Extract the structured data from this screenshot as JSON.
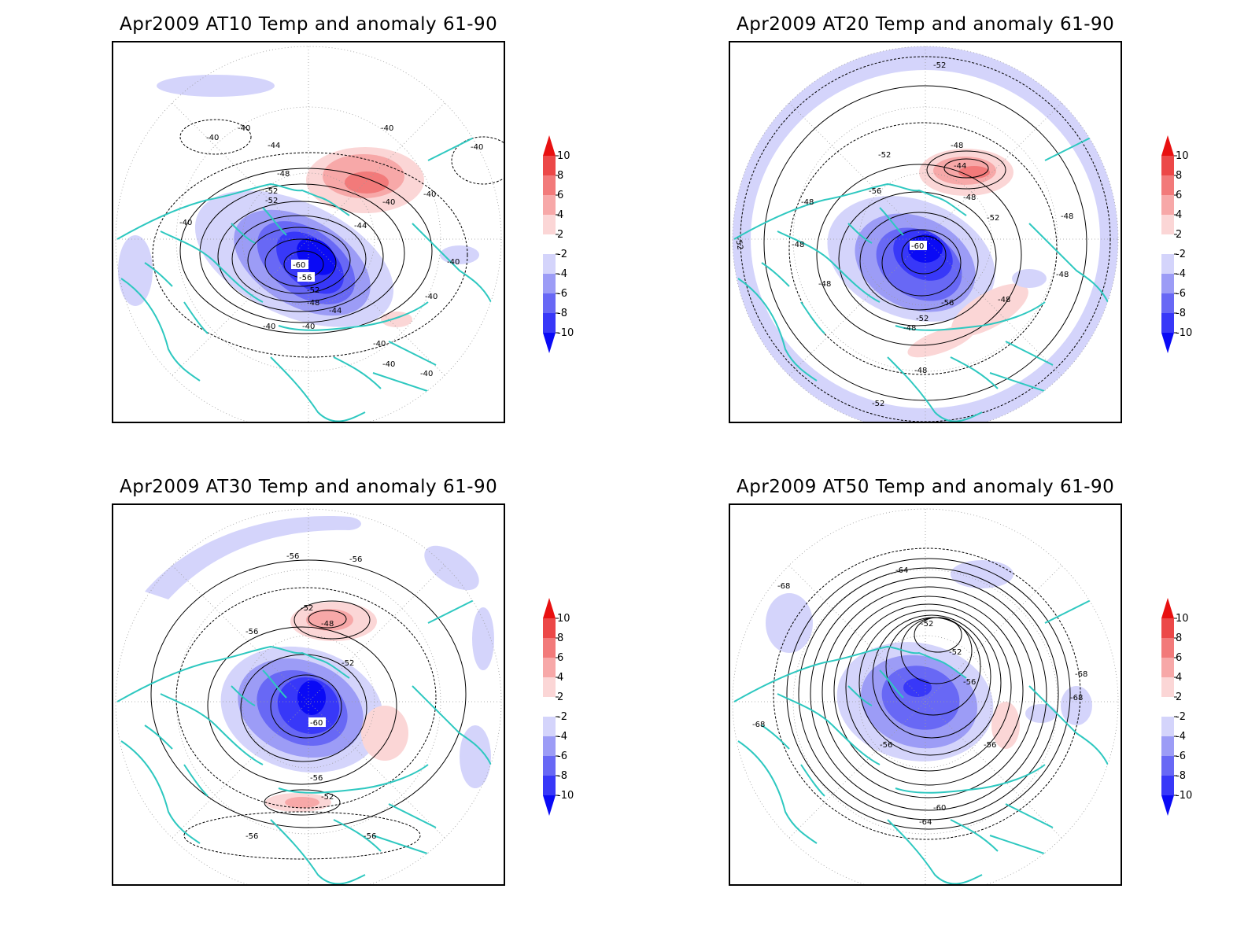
{
  "colors": {
    "land_outline": "#2ec8c0",
    "contour": "#000000",
    "grid": "#9a9a9a",
    "scale": [
      "#0a0af5",
      "#3838f8",
      "#6868f5",
      "#9c9cf6",
      "#d4d4fb",
      "#ffffff",
      "#fbd6d6",
      "#f7a8a8",
      "#f27a7a",
      "#ec4848",
      "#e81010"
    ]
  },
  "colorbar": {
    "ticks": [
      "10",
      "8",
      "6",
      "4",
      "2",
      "-2",
      "-4",
      "-6",
      "-8",
      "-10"
    ]
  },
  "panels": [
    {
      "title": "Apr2009 AT10 Temp and anomaly 61-90",
      "contour_labels": [
        "-40",
        "-40",
        "-40",
        "-44",
        "-48",
        "-52",
        "-52",
        "-60",
        "-56",
        "-52",
        "-48",
        "-44",
        "-40",
        "-40",
        "-40",
        "-40",
        "-40",
        "-40",
        "-44",
        "-40",
        "-40",
        "-40",
        "-40",
        "-40"
      ]
    },
    {
      "title": "Apr2009 AT20 Temp and anomaly 61-90",
      "contour_labels": [
        "-52",
        "-52",
        "-48",
        "-44",
        "-48",
        "-56",
        "-48",
        "-48",
        "-60",
        "-52",
        "-48",
        "-56",
        "-52",
        "-48",
        "-48",
        "-48",
        "-48",
        "-48",
        "-52",
        "-52"
      ]
    },
    {
      "title": "Apr2009 AT30 Temp and anomaly 61-90",
      "contour_labels": [
        "-56",
        "-56",
        "-52",
        "-48",
        "-56",
        "-52",
        "-60",
        "-56",
        "-52",
        "-56",
        "-56"
      ]
    },
    {
      "title": "Apr2009 AT50 Temp and anomaly 61-90",
      "contour_labels": [
        "-64",
        "-68",
        "-52",
        "-52",
        "-56",
        "-56",
        "-56",
        "-68",
        "-68",
        "-68",
        "-60",
        "-64"
      ]
    }
  ]
}
